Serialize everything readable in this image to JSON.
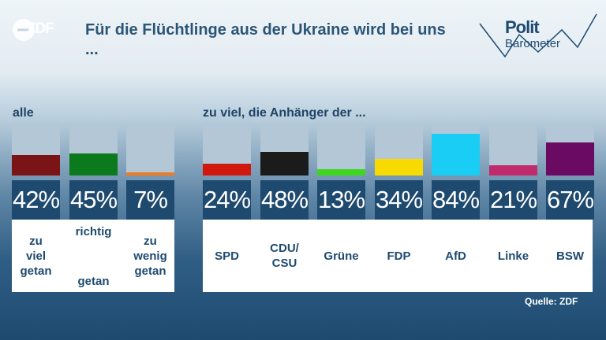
{
  "header": {
    "logo_text": "ZDF",
    "title": "Für die Flüchtlinge aus der Ukraine wird bei uns ...",
    "brand_line1": "Polit",
    "brand_line2": "Barometer"
  },
  "sections": {
    "all_label": "alle",
    "party_label": "zu viel, die Anhänger der ..."
  },
  "colors": {
    "zu_viel": "#7a1416",
    "richtig": "#0a7a1c",
    "zu_wenig": "#ef7b22",
    "SPD": "#d0180f",
    "CDU/CSU": "#1b1b1b",
    "Grüne": "#3fd61f",
    "FDP": "#f6da00",
    "AfD": "#19cdf5",
    "Linke": "#bf2b6c",
    "BSW": "#6a0a63"
  },
  "chart_data": [
    {
      "type": "bar",
      "title": "alle",
      "categories": [
        "zu viel getan",
        "richtig getan",
        "zu wenig getan"
      ],
      "values": [
        42,
        45,
        7
      ],
      "value_labels": [
        "42%",
        "45%",
        "7%"
      ],
      "category_labels": [
        [
          "zu",
          "viel",
          "getan"
        ],
        [
          "richtig",
          "getan"
        ],
        [
          "zu",
          "wenig",
          "getan"
        ]
      ],
      "ylim": [
        0,
        100
      ]
    },
    {
      "type": "bar",
      "title": "zu viel, die Anhänger der ...",
      "categories": [
        "SPD",
        "CDU/CSU",
        "Grüne",
        "FDP",
        "AfD",
        "Linke",
        "BSW"
      ],
      "values": [
        24,
        48,
        13,
        34,
        84,
        21,
        67
      ],
      "value_labels": [
        "24%",
        "48%",
        "13%",
        "34%",
        "84%",
        "21%",
        "67%"
      ],
      "category_labels": [
        [
          "SPD"
        ],
        [
          "CDU/",
          "CSU"
        ],
        [
          "Grüne"
        ],
        [
          "FDP"
        ],
        [
          "AfD"
        ],
        [
          "Linke"
        ],
        [
          "BSW"
        ]
      ],
      "ylim": [
        0,
        100
      ]
    }
  ],
  "footer": {
    "source": "Quelle: ZDF"
  }
}
